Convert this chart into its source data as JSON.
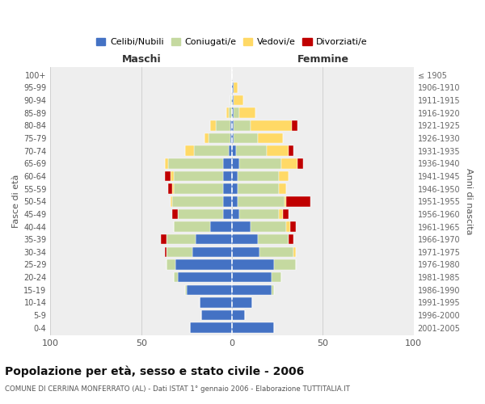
{
  "age_groups": [
    "0-4",
    "5-9",
    "10-14",
    "15-19",
    "20-24",
    "25-29",
    "30-34",
    "35-39",
    "40-44",
    "45-49",
    "50-54",
    "55-59",
    "60-64",
    "65-69",
    "70-74",
    "75-79",
    "80-84",
    "85-89",
    "90-94",
    "95-99",
    "100+"
  ],
  "birth_years": [
    "2001-2005",
    "1996-2000",
    "1991-1995",
    "1986-1990",
    "1981-1985",
    "1976-1980",
    "1971-1975",
    "1966-1970",
    "1961-1965",
    "1956-1960",
    "1951-1955",
    "1946-1950",
    "1941-1945",
    "1936-1940",
    "1931-1935",
    "1926-1930",
    "1921-1925",
    "1916-1920",
    "1911-1915",
    "1906-1910",
    "≤ 1905"
  ],
  "males": {
    "celibi": [
      23,
      17,
      18,
      25,
      30,
      31,
      22,
      20,
      12,
      5,
      5,
      5,
      5,
      5,
      2,
      1,
      1,
      0,
      0,
      0,
      0
    ],
    "coniugati": [
      0,
      0,
      0,
      1,
      2,
      5,
      14,
      16,
      20,
      25,
      28,
      27,
      27,
      30,
      19,
      12,
      8,
      2,
      1,
      0,
      0
    ],
    "vedovi": [
      0,
      0,
      0,
      0,
      0,
      0,
      0,
      0,
      0,
      0,
      1,
      1,
      2,
      2,
      5,
      2,
      3,
      1,
      0,
      0,
      0
    ],
    "divorziati": [
      0,
      0,
      0,
      0,
      0,
      0,
      1,
      3,
      0,
      3,
      0,
      2,
      3,
      0,
      0,
      0,
      0,
      0,
      0,
      0,
      0
    ]
  },
  "females": {
    "nubili": [
      23,
      7,
      11,
      22,
      22,
      23,
      15,
      14,
      10,
      4,
      3,
      3,
      3,
      4,
      2,
      1,
      1,
      1,
      1,
      1,
      0
    ],
    "coniugate": [
      0,
      0,
      0,
      1,
      5,
      12,
      19,
      17,
      20,
      22,
      26,
      23,
      23,
      23,
      17,
      13,
      9,
      3,
      0,
      0,
      0
    ],
    "vedove": [
      0,
      0,
      0,
      0,
      0,
      0,
      1,
      0,
      2,
      2,
      1,
      4,
      5,
      9,
      12,
      14,
      23,
      9,
      5,
      2,
      0
    ],
    "divorziate": [
      0,
      0,
      0,
      0,
      0,
      0,
      0,
      3,
      3,
      3,
      13,
      0,
      0,
      3,
      3,
      0,
      3,
      0,
      0,
      0,
      0
    ]
  },
  "colors": {
    "celibi_nubili": "#4472c4",
    "coniugati_e": "#c5d9a0",
    "vedovi_e": "#ffd966",
    "divorziati_e": "#c00000"
  },
  "title": "Popolazione per età, sesso e stato civile - 2006",
  "subtitle": "COMUNE DI CERRINA MONFERRATO (AL) - Dati ISTAT 1° gennaio 2006 - Elaborazione TUTTITALIA.IT",
  "ylabel_left": "Fasce di età",
  "ylabel_right": "Anni di nascita",
  "xlabel_left": "Maschi",
  "xlabel_right": "Femmine",
  "xlim": 100,
  "background_color": "#ffffff",
  "plot_bg": "#eeeeee",
  "grid_color": "#cccccc"
}
